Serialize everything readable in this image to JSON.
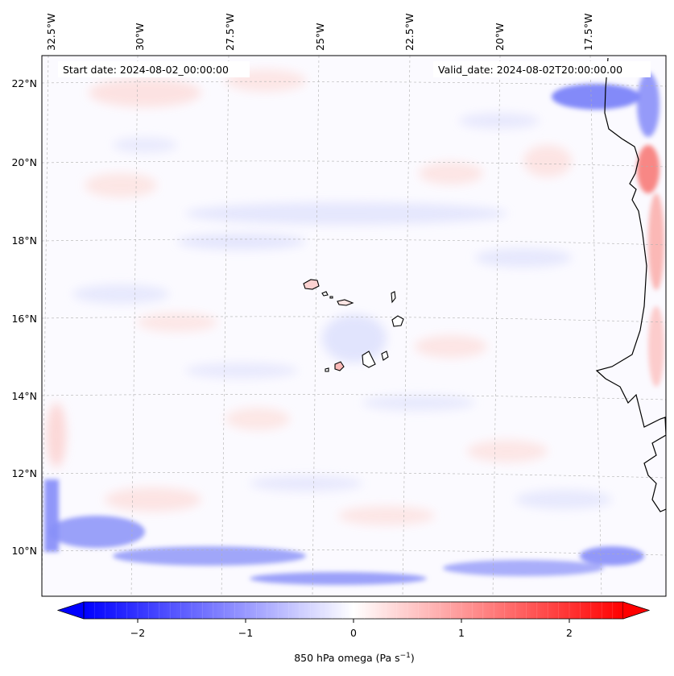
{
  "map": {
    "start_date": "Start date: 2024-08-02_00:00:00",
    "valid_date": "Valid_date: 2024-08-02T20:00:00.00",
    "lon_labels": [
      "32.5°W",
      "30°W",
      "27.5°W",
      "25°W",
      "22.5°W",
      "20°W",
      "17.5°W"
    ],
    "lat_labels": [
      "22°N",
      "20°N",
      "18°N",
      "16°N",
      "14°N",
      "12°N",
      "10°N"
    ],
    "field": "850 hPa omega",
    "units": "Pa s⁻¹",
    "grid_lines": "dashed",
    "coastline_color": "#000000"
  },
  "colorbar": {
    "label": "850 hPa omega (Pa s",
    "label_sup": "−1",
    "label_close": ")",
    "ticks": [
      "−2",
      "−1",
      "0",
      "1",
      "2"
    ],
    "tick_values": [
      -2,
      -1,
      0,
      1,
      2
    ],
    "range": [
      -2.5,
      2.5
    ],
    "colormap": "bwr",
    "extend": "both",
    "color_min": "#0000ff",
    "color_mid": "#ffffff",
    "color_max": "#ff0000"
  }
}
